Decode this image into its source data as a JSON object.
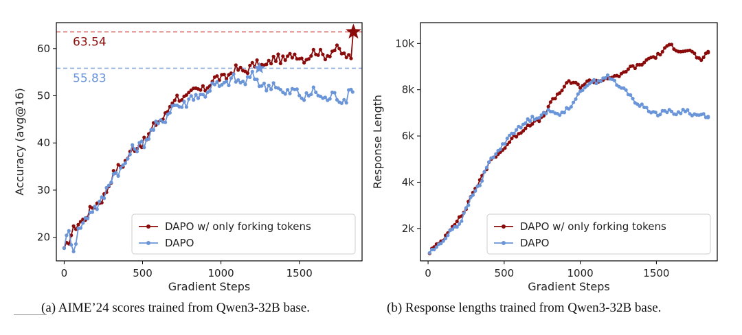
{
  "captions": {
    "a": "(a) AIME’24 scores trained from Qwen3-32B base.",
    "b": "(b) Response lengths trained from Qwen3-32B base."
  },
  "colors": {
    "forking": "#8b0a0a",
    "dapo": "#6a95d8",
    "axis": "#000000"
  },
  "chart_data": [
    {
      "type": "line",
      "xlabel": "Gradient Steps",
      "ylabel": "Accuracy (avg@16)",
      "xlim": [
        -50,
        1900
      ],
      "ylim": [
        15,
        65.5
      ],
      "xticks": [
        0,
        500,
        1000,
        1500
      ],
      "yticks": [
        20,
        30,
        40,
        50,
        60
      ],
      "ytick_labels": [
        "20",
        "30",
        "40",
        "50",
        "60"
      ],
      "legend_loc": "lower-right",
      "reference_lines": [
        {
          "value": 63.54,
          "label": "63.54",
          "color": "#d46a6a",
          "text_color": "#8b0a0a"
        },
        {
          "value": 55.83,
          "label": "55.83",
          "color": "#8fb0dc",
          "text_color": "#6a95d8"
        }
      ],
      "series": [
        {
          "name": "DAPO w/ only forking tokens",
          "color": "#8b0a0a",
          "end_marker": "star",
          "anchors": [
            [
              0,
              17.5
            ],
            [
              50,
              20.5
            ],
            [
              100,
              23.5
            ],
            [
              150,
              25
            ],
            [
              200,
              26.5
            ],
            [
              250,
              29
            ],
            [
              300,
              32
            ],
            [
              350,
              35
            ],
            [
              400,
              37
            ],
            [
              450,
              38.5
            ],
            [
              500,
              40.5
            ],
            [
              550,
              42
            ],
            [
              600,
              44.5
            ],
            [
              650,
              46.5
            ],
            [
              700,
              49
            ],
            [
              750,
              50
            ],
            [
              800,
              50
            ],
            [
              850,
              51
            ],
            [
              900,
              52
            ],
            [
              950,
              53
            ],
            [
              1000,
              54
            ],
            [
              1050,
              54.5
            ],
            [
              1100,
              55.3
            ],
            [
              1150,
              55.8
            ],
            [
              1200,
              56
            ],
            [
              1250,
              56.5
            ],
            [
              1300,
              57
            ],
            [
              1350,
              57.5
            ],
            [
              1400,
              58
            ],
            [
              1450,
              58.5
            ],
            [
              1500,
              58.2
            ],
            [
              1550,
              58.5
            ],
            [
              1600,
              59
            ],
            [
              1650,
              59
            ],
            [
              1700,
              59.2
            ],
            [
              1750,
              59.5
            ],
            [
              1800,
              59
            ],
            [
              1830,
              57.5
            ],
            [
              1845,
              63.54
            ]
          ],
          "amplitude": 1.3
        },
        {
          "name": "DAPO",
          "color": "#6a95d8",
          "end_marker": "star",
          "end_marker_at": [
            1245,
            55.83
          ],
          "anchors": [
            [
              0,
              19
            ],
            [
              30,
              20.5
            ],
            [
              60,
              17
            ],
            [
              100,
              23
            ],
            [
              150,
              24.5
            ],
            [
              200,
              26
            ],
            [
              250,
              29
            ],
            [
              300,
              32
            ],
            [
              350,
              34.5
            ],
            [
              400,
              36.5
            ],
            [
              450,
              38.5
            ],
            [
              500,
              40.5
            ],
            [
              550,
              41.5
            ],
            [
              600,
              44
            ],
            [
              650,
              46
            ],
            [
              700,
              47.5
            ],
            [
              750,
              48.5
            ],
            [
              800,
              49
            ],
            [
              850,
              50
            ],
            [
              900,
              51
            ],
            [
              950,
              51.5
            ],
            [
              1000,
              52.5
            ],
            [
              1050,
              53
            ],
            [
              1100,
              53
            ],
            [
              1150,
              53.5
            ],
            [
              1200,
              53.5
            ],
            [
              1250,
              53
            ],
            [
              1300,
              52
            ],
            [
              1350,
              52
            ],
            [
              1400,
              51
            ],
            [
              1450,
              50.5
            ],
            [
              1500,
              50.5
            ],
            [
              1550,
              50
            ],
            [
              1600,
              50.5
            ],
            [
              1650,
              50
            ],
            [
              1700,
              49.5
            ],
            [
              1750,
              49.5
            ],
            [
              1800,
              50
            ],
            [
              1840,
              50.8
            ]
          ],
          "amplitude": 1.6
        }
      ]
    },
    {
      "type": "line",
      "xlabel": "Gradient Steps",
      "ylabel": "Response Length",
      "xlim": [
        -50,
        1900
      ],
      "ylim": [
        600,
        10900
      ],
      "xticks": [
        0,
        500,
        1000,
        1500
      ],
      "yticks": [
        2000,
        4000,
        6000,
        8000,
        10000
      ],
      "ytick_labels": [
        "2k",
        "4k",
        "6k",
        "8k",
        "10k"
      ],
      "legend_loc": "lower-right",
      "series": [
        {
          "name": "DAPO w/ only forking tokens",
          "color": "#8b0a0a",
          "anchors": [
            [
              10,
              950
            ],
            [
              50,
              1200
            ],
            [
              100,
              1600
            ],
            [
              150,
              2000
            ],
            [
              200,
              2400
            ],
            [
              250,
              2900
            ],
            [
              300,
              3600
            ],
            [
              350,
              4200
            ],
            [
              400,
              4800
            ],
            [
              450,
              5200
            ],
            [
              500,
              5500
            ],
            [
              550,
              5800
            ],
            [
              600,
              6200
            ],
            [
              650,
              6400
            ],
            [
              700,
              6600
            ],
            [
              750,
              6800
            ],
            [
              800,
              7300
            ],
            [
              850,
              7800
            ],
            [
              900,
              8200
            ],
            [
              950,
              8300
            ],
            [
              1000,
              8200
            ],
            [
              1050,
              8300
            ],
            [
              1100,
              8400
            ],
            [
              1150,
              8450
            ],
            [
              1200,
              8500
            ],
            [
              1250,
              8600
            ],
            [
              1300,
              8800
            ],
            [
              1350,
              9000
            ],
            [
              1400,
              9100
            ],
            [
              1450,
              9300
            ],
            [
              1500,
              9500
            ],
            [
              1550,
              9700
            ],
            [
              1600,
              9900
            ],
            [
              1650,
              9750
            ],
            [
              1700,
              9650
            ],
            [
              1750,
              9600
            ],
            [
              1800,
              9200
            ],
            [
              1840,
              9600
            ]
          ],
          "amplitude": 120
        },
        {
          "name": "DAPO",
          "color": "#6a95d8",
          "anchors": [
            [
              10,
              920
            ],
            [
              50,
              1150
            ],
            [
              100,
              1500
            ],
            [
              150,
              1900
            ],
            [
              200,
              2200
            ],
            [
              250,
              2800
            ],
            [
              300,
              3500
            ],
            [
              350,
              4100
            ],
            [
              400,
              4800
            ],
            [
              450,
              5300
            ],
            [
              500,
              5700
            ],
            [
              550,
              6100
            ],
            [
              600,
              6400
            ],
            [
              650,
              6600
            ],
            [
              700,
              6800
            ],
            [
              750,
              7000
            ],
            [
              800,
              7000
            ],
            [
              850,
              7000
            ],
            [
              900,
              7100
            ],
            [
              950,
              7300
            ],
            [
              1000,
              8000
            ],
            [
              1050,
              8200
            ],
            [
              1100,
              8400
            ],
            [
              1150,
              8500
            ],
            [
              1200,
              8500
            ],
            [
              1250,
              8200
            ],
            [
              1300,
              7900
            ],
            [
              1350,
              7600
            ],
            [
              1400,
              7300
            ],
            [
              1450,
              7100
            ],
            [
              1500,
              7000
            ],
            [
              1550,
              7050
            ],
            [
              1600,
              7000
            ],
            [
              1650,
              7050
            ],
            [
              1700,
              7050
            ],
            [
              1750,
              6950
            ],
            [
              1800,
              6900
            ],
            [
              1840,
              6800
            ]
          ],
          "amplitude": 130
        }
      ]
    }
  ]
}
